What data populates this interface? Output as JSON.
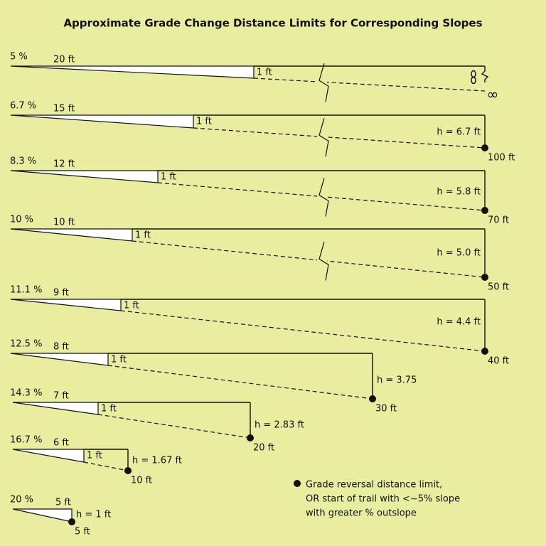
{
  "title": "Approximate Grade Change Distance Limits for Corresponding Slopes",
  "rows": [
    {
      "slope": "5 %",
      "run": "20 ft",
      "rise": "1 ft",
      "distance": "∞"
    },
    {
      "slope": "6.7 %",
      "run": "15 ft",
      "rise": "1 ft",
      "height": "h = 6.7 ft",
      "distance": "100 ft"
    },
    {
      "slope": "8.3 %",
      "run": "12 ft",
      "rise": "1 ft",
      "height": "h = 5.8 ft",
      "distance": "70 ft"
    },
    {
      "slope": "10 %",
      "run": "10 ft",
      "rise": "1 ft",
      "height": "h = 5.0 ft",
      "distance": "50 ft"
    },
    {
      "slope": "11.1 %",
      "run": "9 ft",
      "rise": "1 ft",
      "height": "h = 4.4 ft",
      "distance": "40 ft"
    },
    {
      "slope": "12.5 %",
      "run": "8 ft",
      "rise": "1 ft",
      "height": "h = 3.75",
      "distance": "30 ft"
    },
    {
      "slope": "14.3 %",
      "run": "7 ft",
      "rise": "1 ft",
      "height": "h = 2.83 ft",
      "distance": "20 ft"
    },
    {
      "slope": "16.7 %",
      "run": "6 ft",
      "rise": "1 ft",
      "height": "h = 1.67 ft",
      "distance": "10 ft"
    },
    {
      "slope": "20 %",
      "run": "5 ft",
      "height": "h = 1 ft",
      "distance": "5 ft"
    }
  ],
  "legend": {
    "lines": [
      "Grade reversal distance limit,",
      "OR start of trail with <~5% slope",
      "with greater % outslope"
    ]
  }
}
